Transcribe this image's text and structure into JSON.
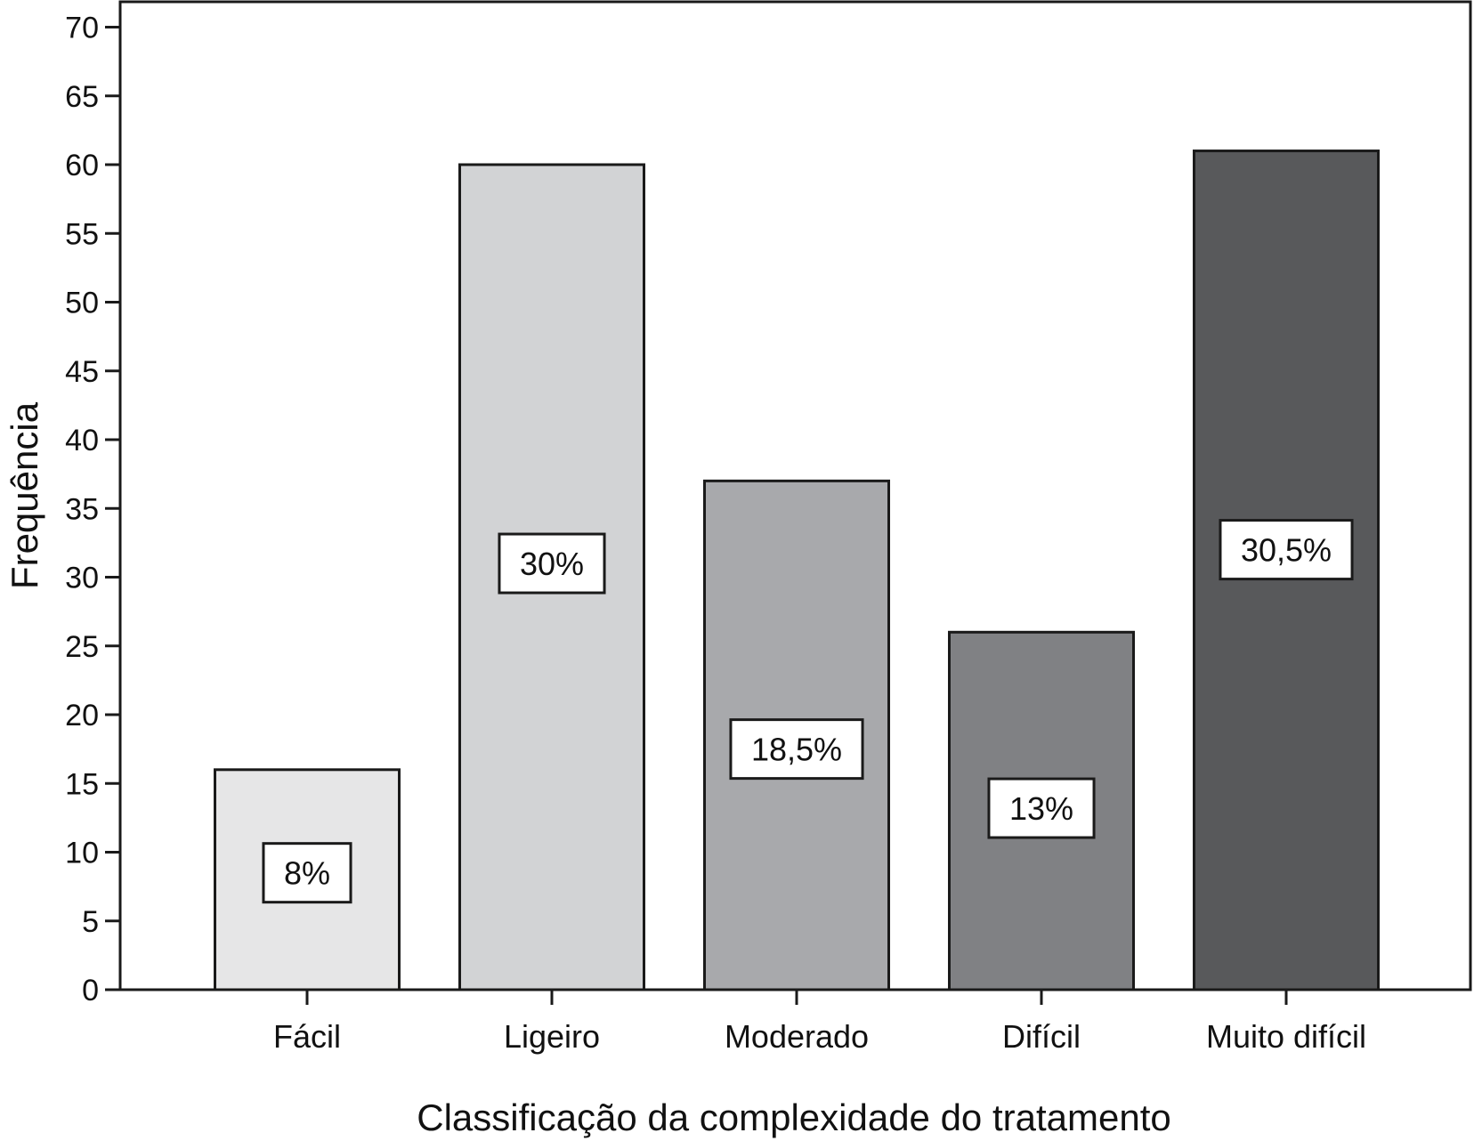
{
  "chart_data": {
    "type": "bar",
    "title": "",
    "xlabel": "Classificação da complexidade do tratamento",
    "ylabel": "Frequência",
    "categories": [
      "Fácil",
      "Ligeiro",
      "Moderado",
      "Difícil",
      "Muito difícil"
    ],
    "values": [
      16,
      60,
      37,
      26,
      61
    ],
    "data_labels": [
      "8%",
      "30%",
      "18,5%",
      "13%",
      "30,5%"
    ],
    "label_values": [
      8.5,
      31,
      17.5,
      13.2,
      32
    ],
    "bar_colors": [
      "#e6e6e7",
      "#d2d3d5",
      "#a8a9ac",
      "#808184",
      "#58595b"
    ],
    "ylim": [
      0,
      72
    ],
    "yticks": [
      0,
      5,
      10,
      15,
      20,
      25,
      30,
      35,
      40,
      45,
      50,
      55,
      60,
      65,
      70
    ],
    "grid": false,
    "legend": "none"
  }
}
